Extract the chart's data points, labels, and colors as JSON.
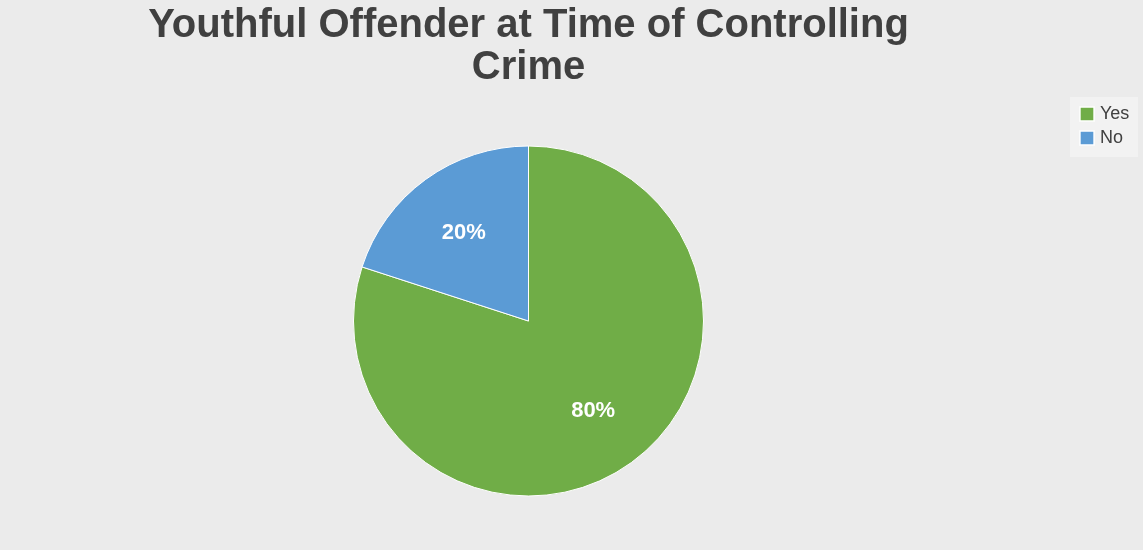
{
  "chart_data": {
    "type": "pie",
    "title": "Youthful Offender at Time of Controlling Crime",
    "categories": [
      "Yes",
      "No"
    ],
    "values": [
      80,
      20
    ],
    "colors": [
      "#70ad47",
      "#5b9bd5"
    ],
    "value_labels": [
      "80%",
      "20%"
    ],
    "legend": "right"
  }
}
